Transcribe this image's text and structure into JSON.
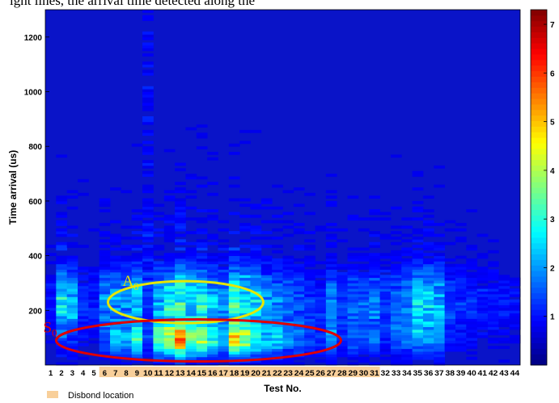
{
  "top_caption": "ight lines, the arrival time detected along the",
  "chart_data": {
    "type": "heatmap",
    "title": "",
    "xlabel": "Test No.",
    "ylabel": "Time arrival (us)",
    "x_categories": [
      "1",
      "2",
      "3",
      "4",
      "5",
      "6",
      "7",
      "8",
      "9",
      "10",
      "11",
      "12",
      "13",
      "14",
      "15",
      "16",
      "17",
      "18",
      "19",
      "20",
      "21",
      "22",
      "23",
      "24",
      "25",
      "26",
      "27",
      "28",
      "29",
      "30",
      "31",
      "32",
      "33",
      "34",
      "35",
      "36",
      "37",
      "38",
      "39",
      "40",
      "41",
      "42",
      "43",
      "44"
    ],
    "ylim": [
      0,
      1300
    ],
    "yticks": [
      "200",
      "400",
      "600",
      "800",
      "1000",
      "1200"
    ],
    "colorbar": {
      "ticks": [
        "1",
        "2",
        "3",
        "4",
        "5",
        "6",
        "7"
      ],
      "range": [
        0,
        7.3
      ],
      "colormap": "jet"
    },
    "disbond_tests": [
      6,
      7,
      8,
      9,
      10,
      11,
      12,
      13,
      14,
      15,
      16,
      17,
      18,
      19,
      20,
      21,
      22,
      23,
      24,
      25,
      26,
      27,
      28,
      29,
      30,
      31
    ],
    "legend": {
      "disbond_label": "Disbond location",
      "disbond_color": "#f8cf9a"
    },
    "annotations": [
      {
        "label": "A",
        "sub": "0",
        "color": "#e6e600",
        "ellipse_center": [
          13.5,
          230
        ],
        "note": "yellow ellipse"
      },
      {
        "label": "S",
        "sub": "0",
        "color": "#e00000",
        "ellipse_center": [
          14.7,
          90
        ],
        "note": "red ellipse"
      }
    ],
    "background_color": "#0a14c8"
  }
}
